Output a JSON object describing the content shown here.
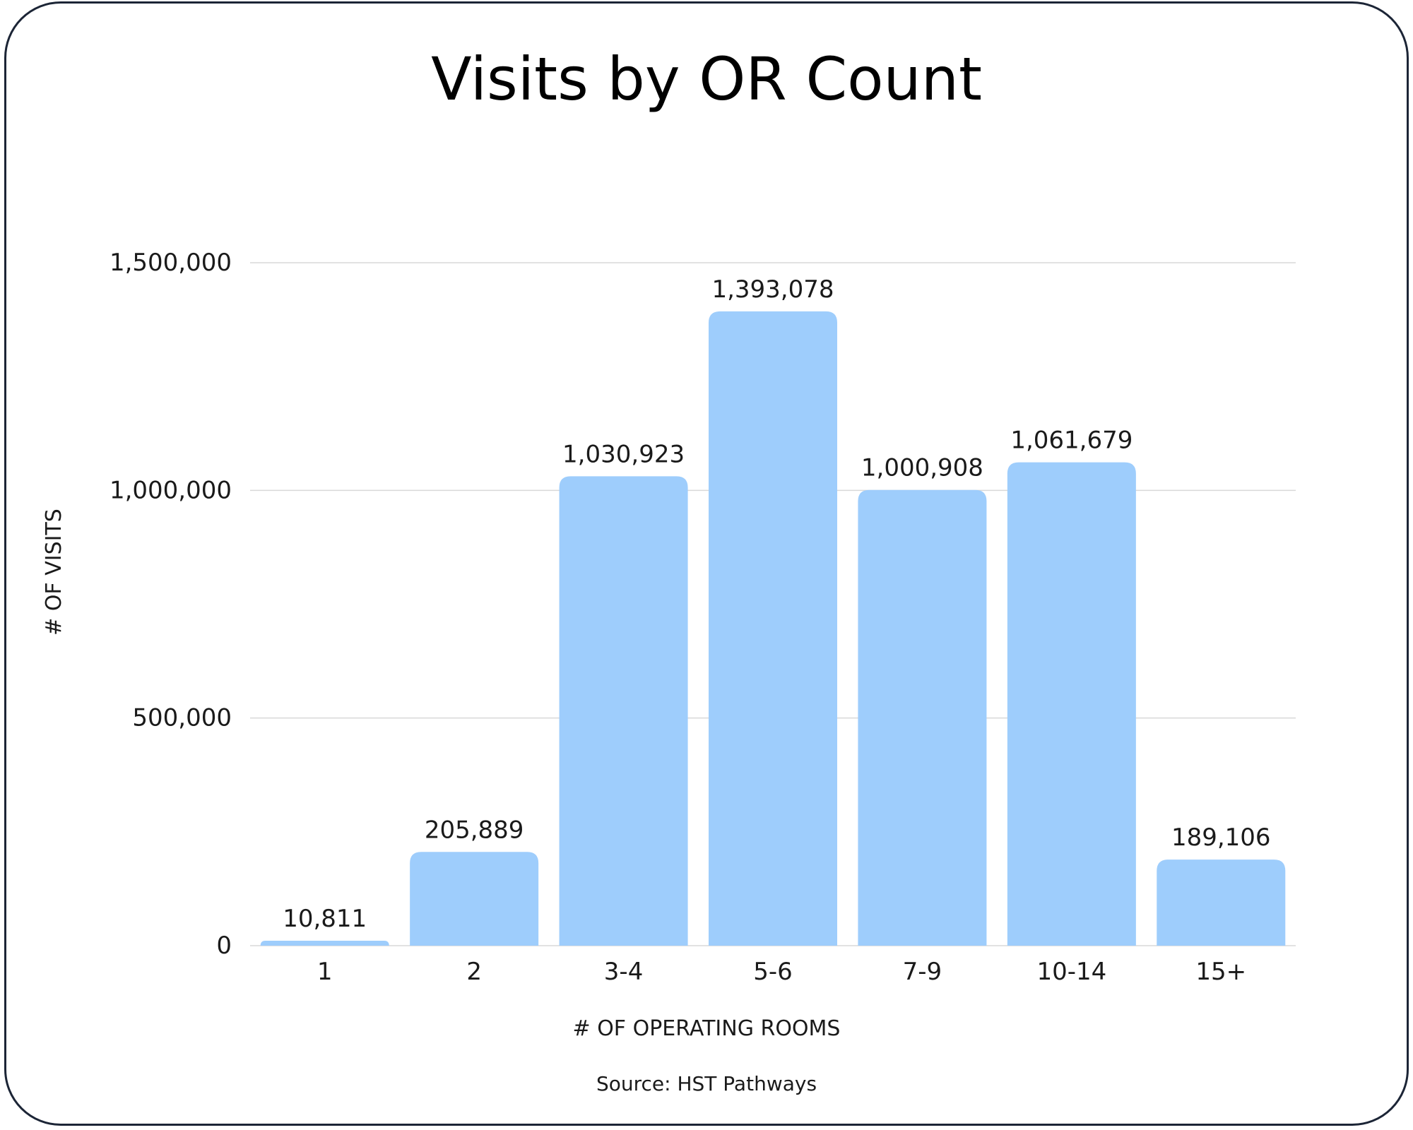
{
  "chart": {
    "title": "Visits by OR Count",
    "source": "Source: HST Pathways"
  },
  "chart_data": {
    "type": "bar",
    "title": "Visits by OR Count",
    "xlabel": "# OF OPERATING ROOMS",
    "ylabel": "# OF VISITS",
    "categories": [
      "1",
      "2",
      "3-4",
      "5-6",
      "7-9",
      "10-14",
      "15+"
    ],
    "values": [
      10811,
      205889,
      1030923,
      1393078,
      1000908,
      1061679,
      189106
    ],
    "value_labels": [
      "10,811",
      "205,889",
      "1,030,923",
      "1,393,078",
      "1,000,908",
      "1,061,679",
      "189,106"
    ],
    "yticks": [
      0,
      500000,
      1000000,
      1500000
    ],
    "ytick_labels": [
      "0",
      "500,000",
      "1,000,000",
      "1,500,000"
    ],
    "ylim": [
      0,
      1500000
    ],
    "grid": true,
    "legend": "none",
    "colors": {
      "bar": "#9ecdfc",
      "grid": "#d9d9d9",
      "text": "#1a1a1a"
    }
  }
}
